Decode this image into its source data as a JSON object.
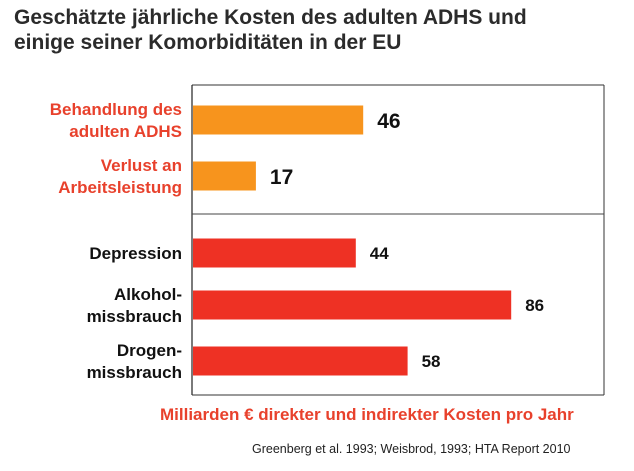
{
  "title_line1": "Geschätzte jährliche Kosten des adulten ADHS und",
  "title_line2": "einige seiner Komorbiditäten in der EU",
  "source": "Greenberg et al. 1993; Weisbrod, 1993; HTA Report 2010",
  "colors": {
    "orange": "#f7941d",
    "red": "#ee3124",
    "red_text": "#e8412c",
    "dark_text": "#111111"
  },
  "chart_data": {
    "type": "bar",
    "orientation": "horizontal",
    "title": "Geschätzte jährliche Kosten des adulten ADHS und einige seiner Komorbiditäten in der EU",
    "xlabel": "Milliarden € direkter und indirekter Kosten pro Jahr",
    "ylabel": "",
    "xlim": [
      0,
      100
    ],
    "grid": false,
    "categories": [
      [
        "Behandlung des",
        "adulten ADHS"
      ],
      [
        "Verlust an",
        "Arbeitsleistung"
      ],
      [
        "Depression"
      ],
      [
        "Alkohol-",
        "missbrauch"
      ],
      [
        "Drogen-",
        "missbrauch"
      ]
    ],
    "values": [
      46,
      17,
      44,
      86,
      58
    ],
    "bar_colors": [
      "#f7941d",
      "#f7941d",
      "#ee3124",
      "#ee3124",
      "#ee3124"
    ],
    "label_colors": [
      "#e8412c",
      "#e8412c",
      "#111111",
      "#111111",
      "#111111"
    ]
  }
}
